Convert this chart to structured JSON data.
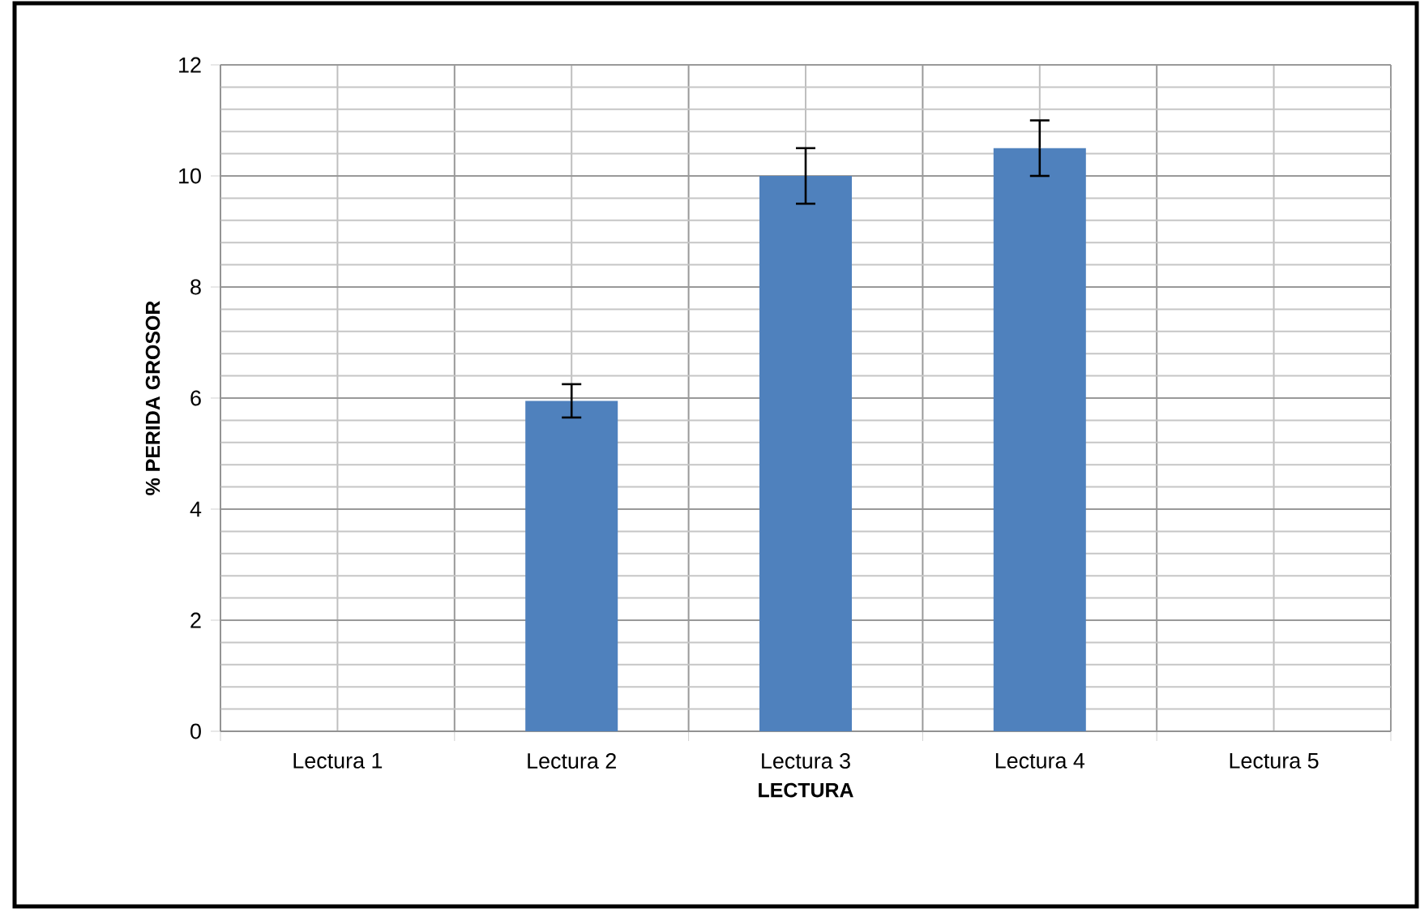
{
  "chart_data": {
    "type": "bar",
    "xlabel": "LECTURA",
    "ylabel": "% PERIDA GROSOR",
    "categories": [
      "Lectura 1",
      "Lectura 2",
      "Lectura 3",
      "Lectura 4",
      "Lectura 5"
    ],
    "values": [
      null,
      5.95,
      10.0,
      10.5,
      null
    ],
    "errors": [
      null,
      0.3,
      0.5,
      0.5,
      null
    ],
    "color": "#4f81bd",
    "ylim": [
      0,
      12
    ],
    "yticks": [
      0,
      2,
      4,
      6,
      8,
      10,
      12
    ],
    "grid": true
  }
}
